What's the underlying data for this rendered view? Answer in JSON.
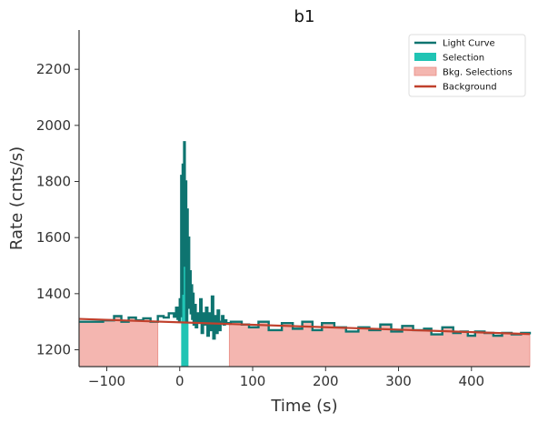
{
  "chart_data": {
    "type": "line",
    "title": "b1",
    "xlabel": "Time (s)",
    "ylabel": "Rate (cnts/s)",
    "xlim": [
      -138,
      480
    ],
    "ylim": [
      1140,
      2340
    ],
    "xticks": [
      -100,
      0,
      100,
      200,
      300,
      400
    ],
    "yticks": [
      1200,
      1400,
      1600,
      1800,
      2000,
      2200
    ],
    "xtick_labels": [
      "−100",
      "0",
      "100",
      "200",
      "300",
      "400"
    ],
    "ytick_labels": [
      "1200",
      "1400",
      "1600",
      "1800",
      "2000",
      "2200"
    ],
    "grid": false,
    "legend_position": "top-right",
    "legend": [
      {
        "label": "Light Curve",
        "kind": "line",
        "color": "#0e7470"
      },
      {
        "label": "Selection",
        "kind": "patch",
        "color": "#20c4b4"
      },
      {
        "label": "Bkg. Selections",
        "kind": "patch",
        "color": "#f4b6b0"
      },
      {
        "label": "Background",
        "kind": "line",
        "color": "#c0402c"
      }
    ],
    "series": [
      {
        "name": "Light Curve",
        "style": "step",
        "color": "#0e7470",
        "points": [
          [
            -138,
            1300
          ],
          [
            -105,
            1305
          ],
          [
            -90,
            1320
          ],
          [
            -80,
            1300
          ],
          [
            -70,
            1315
          ],
          [
            -60,
            1305
          ],
          [
            -50,
            1312
          ],
          [
            -40,
            1300
          ],
          [
            -30,
            1320
          ],
          [
            -22,
            1315
          ],
          [
            -15,
            1330
          ],
          [
            -8,
            1318
          ],
          [
            -5,
            1350
          ],
          [
            -3,
            1310
          ],
          [
            -1,
            1300
          ],
          [
            0,
            1380
          ],
          [
            1,
            1320
          ],
          [
            2,
            1820
          ],
          [
            3,
            1400
          ],
          [
            4,
            1860
          ],
          [
            5,
            1700
          ],
          [
            6,
            1940
          ],
          [
            7,
            1500
          ],
          [
            8,
            1800
          ],
          [
            9,
            1300
          ],
          [
            10,
            1700
          ],
          [
            11,
            1380
          ],
          [
            12,
            1600
          ],
          [
            13,
            1350
          ],
          [
            14,
            1480
          ],
          [
            15,
            1330
          ],
          [
            16,
            1430
          ],
          [
            17,
            1310
          ],
          [
            18,
            1400
          ],
          [
            19,
            1290
          ],
          [
            20,
            1360
          ],
          [
            22,
            1280
          ],
          [
            24,
            1330
          ],
          [
            26,
            1300
          ],
          [
            28,
            1380
          ],
          [
            30,
            1260
          ],
          [
            32,
            1330
          ],
          [
            34,
            1290
          ],
          [
            36,
            1350
          ],
          [
            38,
            1250
          ],
          [
            40,
            1330
          ],
          [
            42,
            1270
          ],
          [
            44,
            1390
          ],
          [
            46,
            1240
          ],
          [
            48,
            1320
          ],
          [
            50,
            1260
          ],
          [
            52,
            1340
          ],
          [
            54,
            1270
          ],
          [
            56,
            1300
          ],
          [
            58,
            1320
          ],
          [
            60,
            1290
          ],
          [
            62,
            1305
          ],
          [
            64,
            1295
          ],
          [
            70,
            1300
          ],
          [
            85,
            1290
          ],
          [
            95,
            1280
          ],
          [
            108,
            1300
          ],
          [
            122,
            1270
          ],
          [
            140,
            1295
          ],
          [
            155,
            1275
          ],
          [
            168,
            1300
          ],
          [
            182,
            1270
          ],
          [
            195,
            1295
          ],
          [
            212,
            1280
          ],
          [
            228,
            1265
          ],
          [
            245,
            1280
          ],
          [
            260,
            1270
          ],
          [
            275,
            1290
          ],
          [
            290,
            1265
          ],
          [
            305,
            1285
          ],
          [
            320,
            1270
          ],
          [
            335,
            1275
          ],
          [
            345,
            1255
          ],
          [
            360,
            1280
          ],
          [
            375,
            1260
          ],
          [
            385,
            1265
          ],
          [
            395,
            1250
          ],
          [
            405,
            1265
          ],
          [
            418,
            1260
          ],
          [
            430,
            1250
          ],
          [
            442,
            1260
          ],
          [
            455,
            1255
          ],
          [
            468,
            1260
          ],
          [
            480,
            1255
          ]
        ]
      },
      {
        "name": "Background",
        "style": "line",
        "color": "#c0402c",
        "points": [
          [
            -138,
            1310
          ],
          [
            480,
            1256
          ]
        ]
      }
    ],
    "selection": {
      "name": "Selection",
      "color": "#20c4b4",
      "x": [
        2,
        12
      ]
    },
    "bkg_selections": {
      "name": "Bkg. Selections",
      "color": "#f4b6b0",
      "ranges": [
        [
          -138,
          -30
        ],
        [
          68,
          480
        ]
      ]
    }
  }
}
